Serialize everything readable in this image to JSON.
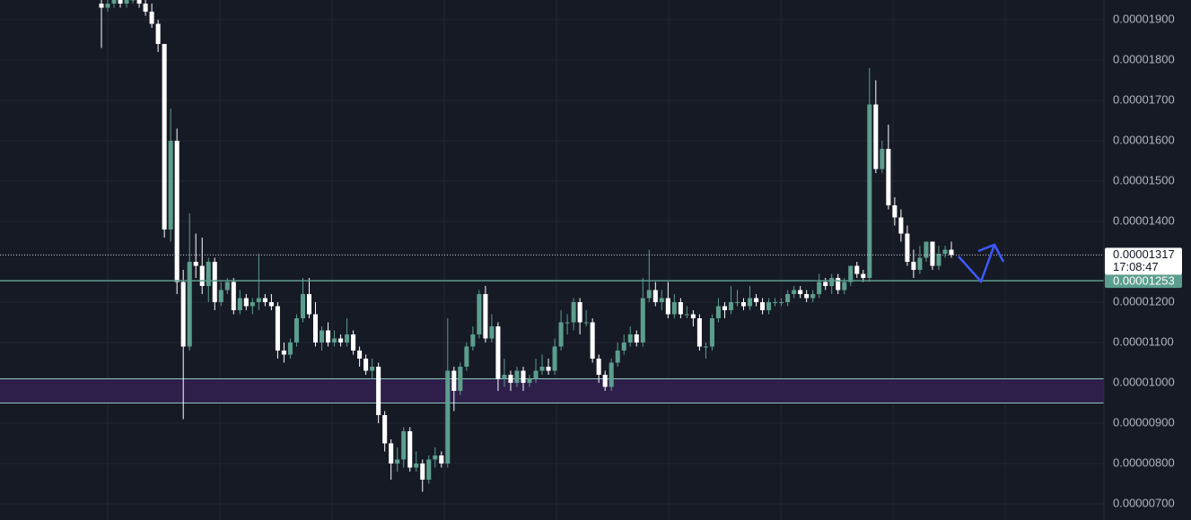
{
  "chart_data": {
    "type": "candlestick",
    "up_color": "#5c9e8e",
    "down_color": "#ffffff",
    "ylim": [
      6.6e-06,
      1.949e-05
    ],
    "yticks": [
      {
        "value": 1.9e-05,
        "label": "0.00001900"
      },
      {
        "value": 1.8e-05,
        "label": "0.00001800"
      },
      {
        "value": 1.7e-05,
        "label": "0.00001700"
      },
      {
        "value": 1.6e-05,
        "label": "0.00001600"
      },
      {
        "value": 1.5e-05,
        "label": "0.00001500"
      },
      {
        "value": 1.4e-05,
        "label": "0.00001400"
      },
      {
        "value": 1.2e-05,
        "label": "0.00001200"
      },
      {
        "value": 1.1e-05,
        "label": "0.00001100"
      },
      {
        "value": 1e-05,
        "label": "0.00001000"
      },
      {
        "value": 9e-06,
        "label": "0.00000900"
      },
      {
        "value": 8e-06,
        "label": "0.00000800"
      },
      {
        "value": 7e-06,
        "label": "0.00000700"
      }
    ],
    "grid": true,
    "last_price": {
      "value": 1.317e-05,
      "label": "0.00001317",
      "countdown": "17:08:47"
    },
    "level": {
      "value": 1.253e-05,
      "label": "0.00001253",
      "color": "#5c9e8e"
    },
    "zone": {
      "low": 9.5e-06,
      "high": 1.01e-05,
      "color": "#2d1f4a"
    },
    "open": [
      1.94e-05,
      1.93e-05,
      1.94e-05,
      1.95e-05,
      1.94e-05,
      1.95e-05,
      1.95e-05,
      1.94e-05,
      1.92e-05,
      1.89e-05,
      1.84e-05,
      1.38e-05,
      1.6e-05,
      1.25e-05,
      1.09e-05,
      1.3e-05,
      1.29e-05,
      1.24e-05,
      1.3e-05,
      1.2e-05,
      1.23e-05,
      1.25e-05,
      1.18e-05,
      1.21e-05,
      1.19e-05,
      1.2e-05,
      1.21e-05,
      1.2e-05,
      1.19e-05,
      1.08e-05,
      1.07e-05,
      1.1e-05,
      1.16e-05,
      1.22e-05,
      1.17e-05,
      1.1e-05,
      1.13e-05,
      1.1e-05,
      1.11e-05,
      1.1e-05,
      1.12e-05,
      1.08e-05,
      1.06e-05,
      1.03e-05,
      1.04e-05,
      9.2e-06,
      8.5e-06,
      8e-06,
      8.1e-06,
      8.8e-06,
      7.9e-06,
      8e-06,
      7.6e-06,
      8.1e-06,
      8.2e-06,
      8e-06,
      1.03e-05,
      9.8e-06,
      1.04e-05,
      1.09e-05,
      1.12e-05,
      1.22e-05,
      1.11e-05,
      1.14e-05,
      1.01e-05,
      1.02e-05,
      1e-05,
      1.03e-05,
      1e-05,
      1.01e-05,
      1.03e-05,
      1.04e-05,
      1.03e-05,
      1.09e-05,
      1.15e-05,
      1.15e-05,
      1.2e-05,
      1.15e-05,
      1.15e-05,
      1.06e-05,
      1.02e-05,
      9.9e-06,
      1.05e-05,
      1.08e-05,
      1.1e-05,
      1.12e-05,
      1.1e-05,
      1.21e-05,
      1.23e-05,
      1.2e-05,
      1.21e-05,
      1.17e-05,
      1.2e-05,
      1.17e-05,
      1.17e-05,
      1.16e-05,
      1.09e-05,
      1.09e-05,
      1.16e-05,
      1.19e-05,
      1.18e-05,
      1.2e-05,
      1.2e-05,
      1.19e-05,
      1.21e-05,
      1.2e-05,
      1.18e-05,
      1.2e-05,
      1.2e-05,
      1.2e-05,
      1.22e-05,
      1.23e-05,
      1.22e-05,
      1.21e-05,
      1.22e-05,
      1.25e-05,
      1.24e-05,
      1.26e-05,
      1.23e-05,
      1.25e-05,
      1.29e-05,
      1.27e-05,
      1.26e-05,
      1.69e-05,
      1.53e-05,
      1.58e-05,
      1.44e-05,
      1.41e-05,
      1.37e-05,
      1.3e-05,
      1.28e-05,
      1.31e-05,
      1.35e-05,
      1.29e-05,
      1.32e-05,
      1.33e-05
    ],
    "close": [
      1.93e-05,
      1.94e-05,
      1.95e-05,
      1.94e-05,
      1.95e-05,
      1.95e-05,
      1.94e-05,
      1.92e-05,
      1.89e-05,
      1.84e-05,
      1.38e-05,
      1.6e-05,
      1.25e-05,
      1.09e-05,
      1.3e-05,
      1.29e-05,
      1.24e-05,
      1.3e-05,
      1.2e-05,
      1.23e-05,
      1.25e-05,
      1.18e-05,
      1.21e-05,
      1.19e-05,
      1.2e-05,
      1.21e-05,
      1.2e-05,
      1.19e-05,
      1.08e-05,
      1.07e-05,
      1.1e-05,
      1.16e-05,
      1.22e-05,
      1.17e-05,
      1.1e-05,
      1.13e-05,
      1.1e-05,
      1.11e-05,
      1.1e-05,
      1.12e-05,
      1.08e-05,
      1.06e-05,
      1.03e-05,
      1.04e-05,
      9.2e-06,
      8.5e-06,
      8e-06,
      8.1e-06,
      8.8e-06,
      7.9e-06,
      8e-06,
      7.6e-06,
      8.1e-06,
      8.2e-06,
      8e-06,
      1.03e-05,
      9.8e-06,
      1.04e-05,
      1.09e-05,
      1.12e-05,
      1.22e-05,
      1.11e-05,
      1.14e-05,
      1.01e-05,
      1.02e-05,
      1e-05,
      1.03e-05,
      1e-05,
      1.01e-05,
      1.03e-05,
      1.04e-05,
      1.03e-05,
      1.09e-05,
      1.15e-05,
      1.15e-05,
      1.2e-05,
      1.15e-05,
      1.15e-05,
      1.06e-05,
      1.02e-05,
      9.9e-06,
      1.05e-05,
      1.08e-05,
      1.1e-05,
      1.12e-05,
      1.1e-05,
      1.21e-05,
      1.23e-05,
      1.2e-05,
      1.21e-05,
      1.17e-05,
      1.2e-05,
      1.17e-05,
      1.17e-05,
      1.16e-05,
      1.09e-05,
      1.09e-05,
      1.16e-05,
      1.19e-05,
      1.18e-05,
      1.2e-05,
      1.2e-05,
      1.19e-05,
      1.21e-05,
      1.2e-05,
      1.18e-05,
      1.2e-05,
      1.2e-05,
      1.2e-05,
      1.22e-05,
      1.23e-05,
      1.22e-05,
      1.21e-05,
      1.22e-05,
      1.25e-05,
      1.24e-05,
      1.26e-05,
      1.23e-05,
      1.25e-05,
      1.29e-05,
      1.27e-05,
      1.26e-05,
      1.69e-05,
      1.53e-05,
      1.58e-05,
      1.44e-05,
      1.41e-05,
      1.37e-05,
      1.3e-05,
      1.28e-05,
      1.31e-05,
      1.35e-05,
      1.29e-05,
      1.32e-05,
      1.33e-05,
      1.317e-05
    ],
    "high": [
      1.96e-05,
      1.96e-05,
      1.96e-05,
      1.96e-05,
      1.96e-05,
      1.96e-05,
      1.96e-05,
      1.95e-05,
      1.94e-05,
      1.9e-05,
      1.84e-05,
      1.68e-05,
      1.63e-05,
      1.28e-05,
      1.42e-05,
      1.37e-05,
      1.36e-05,
      1.31e-05,
      1.31e-05,
      1.25e-05,
      1.26e-05,
      1.26e-05,
      1.23e-05,
      1.22e-05,
      1.21e-05,
      1.32e-05,
      1.22e-05,
      1.22e-05,
      1.2e-05,
      1.1e-05,
      1.11e-05,
      1.17e-05,
      1.26e-05,
      1.26e-05,
      1.2e-05,
      1.14e-05,
      1.15e-05,
      1.13e-05,
      1.12e-05,
      1.16e-05,
      1.13e-05,
      1.09e-05,
      1.07e-05,
      1.06e-05,
      1.05e-05,
      9.3e-06,
      8.6e-06,
      8.4e-06,
      8.9e-06,
      8.9e-06,
      8.3e-06,
      8.1e-06,
      8.2e-06,
      8.4e-06,
      8.3e-06,
      1.16e-05,
      1.04e-05,
      1.05e-05,
      1.1e-05,
      1.14e-05,
      1.23e-05,
      1.24e-05,
      1.17e-05,
      1.15e-05,
      1.06e-05,
      1.03e-05,
      1.04e-05,
      1.04e-05,
      1.02e-05,
      1.06e-05,
      1.07e-05,
      1.06e-05,
      1.11e-05,
      1.18e-05,
      1.17e-05,
      1.21e-05,
      1.21e-05,
      1.18e-05,
      1.16e-05,
      1.07e-05,
      1.03e-05,
      1.06e-05,
      1.1e-05,
      1.12e-05,
      1.14e-05,
      1.13e-05,
      1.26e-05,
      1.33e-05,
      1.25e-05,
      1.23e-05,
      1.25e-05,
      1.22e-05,
      1.21e-05,
      1.19e-05,
      1.18e-05,
      1.17e-05,
      1.1e-05,
      1.17e-05,
      1.21e-05,
      1.2e-05,
      1.24e-05,
      1.23e-05,
      1.21e-05,
      1.24e-05,
      1.22e-05,
      1.21e-05,
      1.21e-05,
      1.21e-05,
      1.21e-05,
      1.23e-05,
      1.24e-05,
      1.24e-05,
      1.23e-05,
      1.23e-05,
      1.27e-05,
      1.26e-05,
      1.27e-05,
      1.27e-05,
      1.26e-05,
      1.29e-05,
      1.3e-05,
      1.28e-05,
      1.78e-05,
      1.75e-05,
      1.6e-05,
      1.64e-05,
      1.46e-05,
      1.43e-05,
      1.39e-05,
      1.33e-05,
      1.34e-05,
      1.35e-05,
      1.35e-05,
      1.34e-05,
      1.34e-05,
      1.35e-05
    ],
    "low": [
      1.83e-05,
      1.92e-05,
      1.93e-05,
      1.93e-05,
      1.93e-05,
      1.94e-05,
      1.93e-05,
      1.91e-05,
      1.88e-05,
      1.82e-05,
      1.36e-05,
      1.35e-05,
      1.22e-05,
      9.1e-06,
      1.08e-05,
      1.26e-05,
      1.22e-05,
      1.2e-05,
      1.18e-05,
      1.19e-05,
      1.22e-05,
      1.17e-05,
      1.17e-05,
      1.18e-05,
      1.17e-05,
      1.18e-05,
      1.19e-05,
      1.18e-05,
      1.06e-05,
      1.05e-05,
      1.06e-05,
      1.09e-05,
      1.15e-05,
      1.16e-05,
      1.09e-05,
      1.08e-05,
      1.09e-05,
      1.09e-05,
      1.09e-05,
      1.09e-05,
      1.07e-05,
      1.04e-05,
      1.02e-05,
      1.01e-05,
      9e-06,
      8.3e-06,
      7.6e-06,
      7.8e-06,
      7.9e-06,
      7.8e-06,
      7.8e-06,
      7.3e-06,
      7.5e-06,
      7.9e-06,
      7.9e-06,
      7.9e-06,
      9.3e-06,
      9.7e-06,
      1.03e-05,
      1.08e-05,
      1.11e-05,
      1.1e-05,
      1.1e-05,
      9.8e-06,
      9.9e-06,
      9.8e-06,
      9.9e-06,
      9.8e-06,
      9.9e-06,
      1e-05,
      1.02e-05,
      1.02e-05,
      1.02e-05,
      1.08e-05,
      1.12e-05,
      1.13e-05,
      1.12e-05,
      1.14e-05,
      1.05e-05,
      1e-05,
      9.8e-06,
      9.8e-06,
      1.04e-05,
      1.07e-05,
      1.09e-05,
      1.09e-05,
      1.09e-05,
      1.2e-05,
      1.19e-05,
      1.18e-05,
      1.16e-05,
      1.16e-05,
      1.16e-05,
      1.16e-05,
      1.14e-05,
      1.08e-05,
      1.06e-05,
      1.08e-05,
      1.15e-05,
      1.16e-05,
      1.17e-05,
      1.19e-05,
      1.18e-05,
      1.18e-05,
      1.19e-05,
      1.17e-05,
      1.17e-05,
      1.19e-05,
      1.19e-05,
      1.19e-05,
      1.21e-05,
      1.21e-05,
      1.2e-05,
      1.2e-05,
      1.21e-05,
      1.23e-05,
      1.22e-05,
      1.22e-05,
      1.22e-05,
      1.24e-05,
      1.26e-05,
      1.25e-05,
      1.25e-05,
      1.52e-05,
      1.52e-05,
      1.43e-05,
      1.39e-05,
      1.35e-05,
      1.29e-05,
      1.26e-05,
      1.27e-05,
      1.3e-05,
      1.28e-05,
      1.28e-05,
      1.31e-05,
      1.31e-05
    ]
  }
}
